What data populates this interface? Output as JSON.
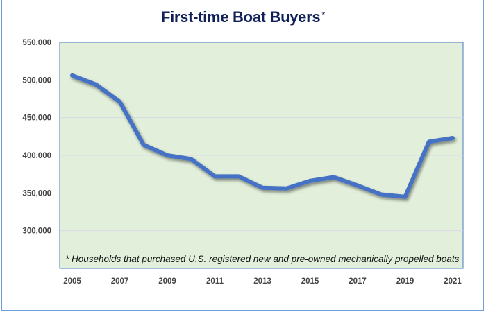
{
  "chart_data": {
    "type": "line",
    "title": "First-time Boat Buyers",
    "title_marker": "*",
    "footnote": "* Households that purchased U.S. registered new and pre-owned mechanically propelled boats",
    "x": [
      2005,
      2006,
      2007,
      2008,
      2009,
      2010,
      2011,
      2012,
      2013,
      2014,
      2015,
      2016,
      2017,
      2018,
      2019,
      2020,
      2021
    ],
    "series": [
      {
        "values": [
          506000,
          494000,
          471000,
          414000,
          400000,
          395000,
          372000,
          372000,
          357000,
          356000,
          366000,
          371000,
          360000,
          348000,
          345000,
          418000,
          423000
        ]
      }
    ],
    "ylim": [
      250000,
      550000
    ],
    "yticks": [
      300000,
      350000,
      400000,
      450000,
      500000,
      550000
    ],
    "ytick_labels": [
      "300,000",
      "350,000",
      "400,000",
      "450,000",
      "500,000",
      "550,000"
    ],
    "xtick_labels": [
      "2005",
      "2007",
      "2009",
      "2011",
      "2013",
      "2015",
      "2017",
      "2019",
      "2021"
    ],
    "xlabel": "",
    "ylabel": "",
    "grid": true,
    "colors": {
      "line": "#4472c4",
      "plot_bg": "#e2efda",
      "title": "#12205a",
      "grid": "#d9d9e6"
    }
  }
}
